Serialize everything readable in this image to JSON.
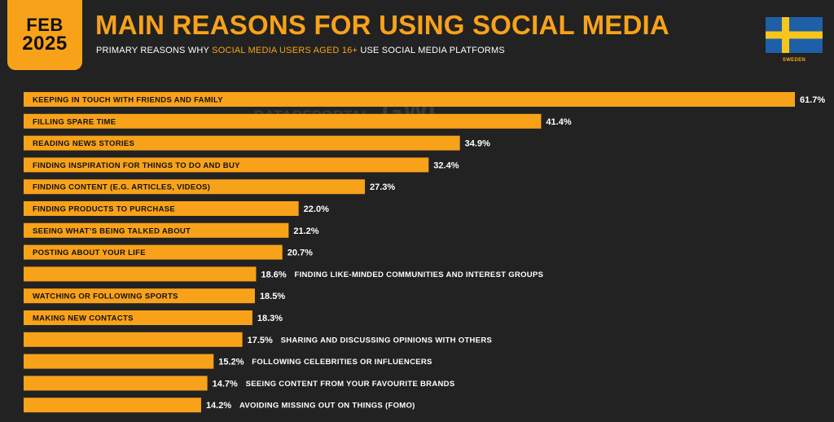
{
  "header": {
    "month": "FEB",
    "year": "2025",
    "title": "MAIN REASONS FOR USING SOCIAL MEDIA",
    "subtitle_prefix": "PRIMARY REASONS WHY ",
    "subtitle_highlight": "SOCIAL MEDIA USERS AGED 16+",
    "subtitle_suffix": " USE SOCIAL MEDIA PLATFORMS",
    "country": "SWEDEN",
    "flag_icon": "sweden-flag-icon"
  },
  "watermark": {
    "brand1": "DATAREPORTAL",
    "brand2": "GWI."
  },
  "colors": {
    "background": "#222222",
    "accent": "#f8a21a",
    "flag_blue": "#1f5fa8",
    "flag_yellow": "#f8c51a"
  },
  "chart_data": {
    "type": "bar",
    "orientation": "horizontal",
    "value_suffix": "%",
    "xlim": [
      0,
      61.7
    ],
    "categories": [
      "KEEPING IN TOUCH WITH FRIENDS AND FAMILY",
      "FILLING SPARE TIME",
      "READING NEWS STORIES",
      "FINDING INSPIRATION FOR THINGS TO DO AND BUY",
      "FINDING CONTENT (E.G. ARTICLES, VIDEOS)",
      "FINDING PRODUCTS TO PURCHASE",
      "SEEING WHAT’S BEING TALKED ABOUT",
      "POSTING ABOUT YOUR LIFE",
      "FINDING LIKE-MINDED COMMUNITIES AND INTEREST GROUPS",
      "WATCHING OR FOLLOWING SPORTS",
      "MAKING NEW CONTACTS",
      "SHARING AND DISCUSSING OPINIONS WITH OTHERS",
      "FOLLOWING CELEBRITIES OR INFLUENCERS",
      "SEEING CONTENT FROM YOUR FAVOURITE BRANDS",
      "AVOIDING MISSING OUT ON THINGS (FOMO)"
    ],
    "values": [
      61.7,
      41.4,
      34.9,
      32.4,
      27.3,
      22.0,
      21.2,
      20.7,
      18.6,
      18.5,
      18.3,
      17.5,
      15.2,
      14.7,
      14.2
    ],
    "value_labels": [
      "61.7%",
      "41.4%",
      "34.9%",
      "32.4%",
      "27.3%",
      "22.0%",
      "21.2%",
      "20.7%",
      "18.6%",
      "18.5%",
      "18.3%",
      "17.5%",
      "15.2%",
      "14.7%",
      "14.2%"
    ],
    "label_inside": [
      true,
      true,
      true,
      true,
      true,
      true,
      true,
      true,
      false,
      true,
      true,
      false,
      false,
      false,
      false
    ]
  }
}
